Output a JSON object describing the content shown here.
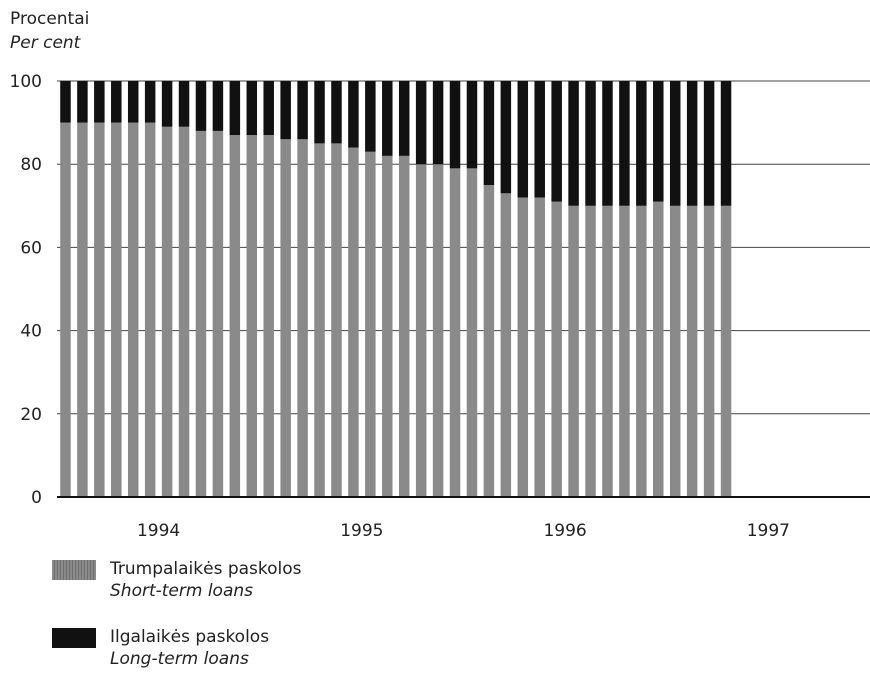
{
  "y_title_lt": "Procentai",
  "y_title_en": "Per cent",
  "colors": {
    "short": "#8a8a8a",
    "long": "#111111",
    "grid": "#444444"
  },
  "legend": [
    {
      "lt": "Trumpalaikės paskolos",
      "en": "Short-term loans",
      "key": "short"
    },
    {
      "lt": "Ilgalaikės paskolos",
      "en": "Long-term loans",
      "key": "long"
    }
  ],
  "chart_data": {
    "type": "bar",
    "stacked": true,
    "x_tick_labels": [
      "1994",
      "1995",
      "1996",
      "1997"
    ],
    "ylim": [
      0,
      100
    ],
    "y_ticks": [
      0,
      20,
      40,
      60,
      80,
      100
    ],
    "grid": true,
    "legend_position": "bottom-left",
    "period_start": "1994-01",
    "period_end": "1997-12",
    "series": [
      {
        "name": "Trumpalaikės paskolos / Short-term loans",
        "values": [
          90,
          90,
          90,
          90,
          90,
          90,
          89,
          89,
          88,
          88,
          87,
          87,
          87,
          86,
          86,
          85,
          85,
          84,
          83,
          82,
          82,
          80,
          80,
          79,
          79,
          75,
          73,
          72,
          72,
          71,
          70,
          70,
          70,
          70,
          70,
          71,
          70,
          70,
          70,
          70
        ]
      },
      {
        "name": "Ilgalaikės paskolos / Long-term loans",
        "values": [
          10,
          10,
          10,
          10,
          10,
          10,
          11,
          11,
          12,
          12,
          13,
          13,
          13,
          14,
          14,
          15,
          15,
          16,
          17,
          18,
          18,
          20,
          20,
          21,
          21,
          25,
          27,
          28,
          28,
          29,
          30,
          30,
          30,
          30,
          30,
          29,
          30,
          30,
          30,
          30
        ]
      }
    ]
  }
}
